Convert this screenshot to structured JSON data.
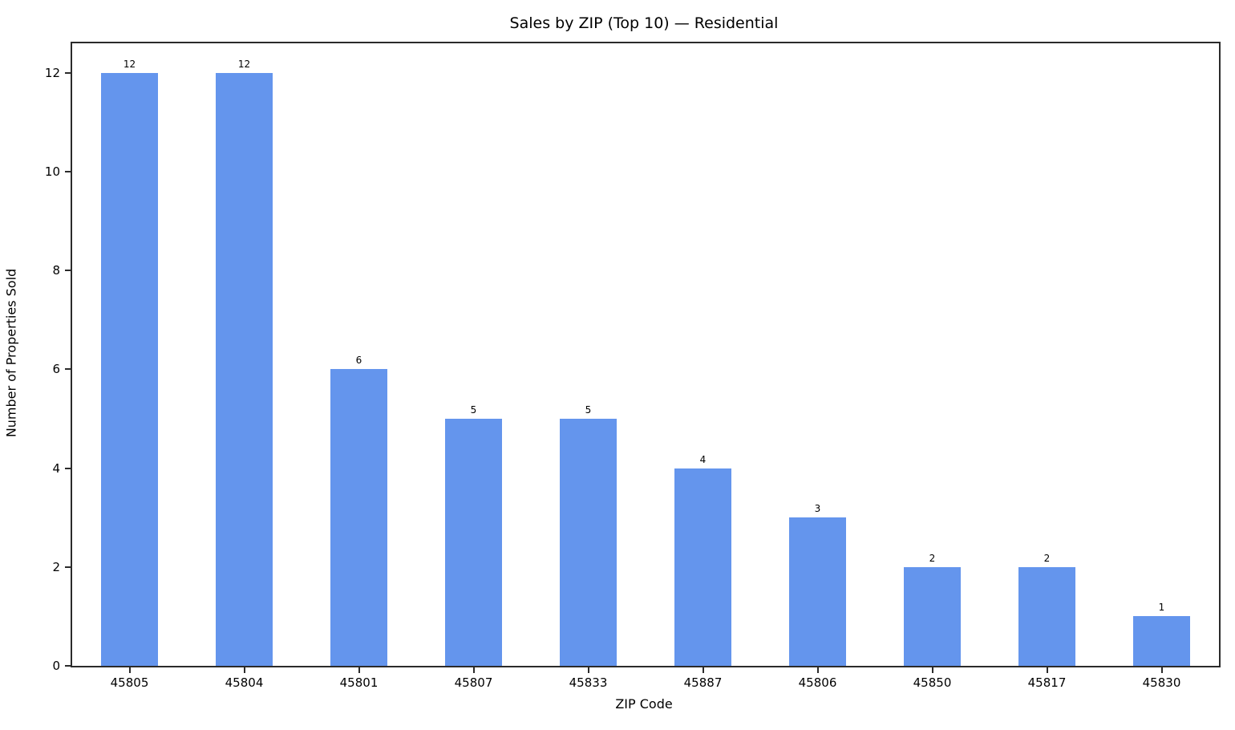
{
  "figure": {
    "background": "#ffffff",
    "spine_color": "#2b2b2b",
    "text_color": "#000000"
  },
  "chart_data": {
    "type": "bar",
    "title": "Sales by ZIP (Top 10) — Residential",
    "xlabel": "ZIP Code",
    "ylabel": "Number of Properties Sold",
    "categories": [
      "45805",
      "45804",
      "45801",
      "45807",
      "45833",
      "45887",
      "45806",
      "45850",
      "45817",
      "45830"
    ],
    "values": [
      12,
      12,
      6,
      5,
      5,
      4,
      3,
      2,
      2,
      1
    ],
    "bar_labels": [
      "12",
      "12",
      "6",
      "5",
      "5",
      "4",
      "3",
      "2",
      "2",
      "1"
    ],
    "bar_color": "#6495ED",
    "yticks": [
      0,
      2,
      4,
      6,
      8,
      10,
      12
    ],
    "ylim": [
      0,
      12.6
    ],
    "bar_rel_width": 0.5,
    "grid": false,
    "legend": null
  }
}
